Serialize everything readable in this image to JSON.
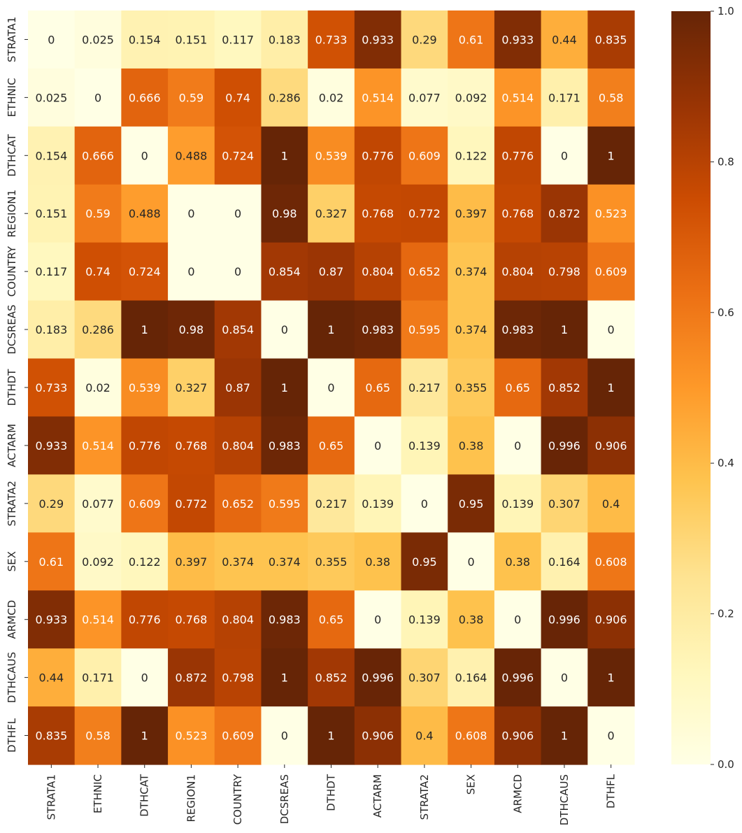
{
  "chart_data": {
    "type": "heatmap",
    "title": "",
    "xlabel": "",
    "ylabel": "",
    "x_labels": [
      "STRATA1",
      "ETHNIC",
      "DTHCAT",
      "REGION1",
      "COUNTRY",
      "DCSREAS",
      "DTHDT",
      "ACTARM",
      "STRATA2",
      "SEX",
      "ARMCD",
      "DTHCAUS",
      "DTHFL"
    ],
    "y_labels": [
      "STRATA1",
      "ETHNIC",
      "DTHCAT",
      "REGION1",
      "COUNTRY",
      "DCSREAS",
      "DTHDT",
      "ACTARM",
      "STRATA2",
      "SEX",
      "ARMCD",
      "DTHCAUS",
      "DTHFL"
    ],
    "values": [
      [
        "0",
        "0.025",
        "0.154",
        "0.151",
        "0.117",
        "0.183",
        "0.733",
        "0.933",
        "0.29",
        "0.61",
        "0.933",
        "0.44",
        "0.835"
      ],
      [
        "0.025",
        "0",
        "0.666",
        "0.59",
        "0.74",
        "0.286",
        "0.02",
        "0.514",
        "0.077",
        "0.092",
        "0.514",
        "0.171",
        "0.58"
      ],
      [
        "0.154",
        "0.666",
        "0",
        "0.488",
        "0.724",
        "1",
        "0.539",
        "0.776",
        "0.609",
        "0.122",
        "0.776",
        "0",
        "1"
      ],
      [
        "0.151",
        "0.59",
        "0.488",
        "0",
        "0",
        "0.98",
        "0.327",
        "0.768",
        "0.772",
        "0.397",
        "0.768",
        "0.872",
        "0.523"
      ],
      [
        "0.117",
        "0.74",
        "0.724",
        "0",
        "0",
        "0.854",
        "0.87",
        "0.804",
        "0.652",
        "0.374",
        "0.804",
        "0.798",
        "0.609"
      ],
      [
        "0.183",
        "0.286",
        "1",
        "0.98",
        "0.854",
        "0",
        "1",
        "0.983",
        "0.595",
        "0.374",
        "0.983",
        "1",
        "0"
      ],
      [
        "0.733",
        "0.02",
        "0.539",
        "0.327",
        "0.87",
        "1",
        "0",
        "0.65",
        "0.217",
        "0.355",
        "0.65",
        "0.852",
        "1"
      ],
      [
        "0.933",
        "0.514",
        "0.776",
        "0.768",
        "0.804",
        "0.983",
        "0.65",
        "0",
        "0.139",
        "0.38",
        "0",
        "0.996",
        "0.906"
      ],
      [
        "0.29",
        "0.077",
        "0.609",
        "0.772",
        "0.652",
        "0.595",
        "0.217",
        "0.139",
        "0",
        "0.95",
        "0.139",
        "0.307",
        "0.4"
      ],
      [
        "0.61",
        "0.092",
        "0.122",
        "0.397",
        "0.374",
        "0.374",
        "0.355",
        "0.38",
        "0.95",
        "0",
        "0.38",
        "0.164",
        "0.608"
      ],
      [
        "0.933",
        "0.514",
        "0.776",
        "0.768",
        "0.804",
        "0.983",
        "0.65",
        "0",
        "0.139",
        "0.38",
        "0",
        "0.996",
        "0.906"
      ],
      [
        "0.44",
        "0.171",
        "0",
        "0.872",
        "0.798",
        "1",
        "0.852",
        "0.996",
        "0.307",
        "0.164",
        "0.996",
        "0",
        "1"
      ],
      [
        "0.835",
        "0.58",
        "1",
        "0.523",
        "0.609",
        "0",
        "1",
        "0.906",
        "0.4",
        "0.608",
        "0.906",
        "1",
        "0"
      ]
    ],
    "value_range": [
      0.0,
      1.0
    ],
    "colorbar": {
      "ticks": [
        "0.0",
        "0.2",
        "0.4",
        "0.6",
        "0.8",
        "1.0"
      ],
      "colormap": "YlOrBr",
      "stops": [
        "#ffffe5",
        "#fff7bc",
        "#fee391",
        "#fec44f",
        "#fe9929",
        "#ec7014",
        "#cc4c02",
        "#993404",
        "#662506"
      ]
    },
    "grid": false,
    "legend": "colorbar-right",
    "text_color_light": "#ffffff",
    "text_color_dark": "#262626"
  }
}
